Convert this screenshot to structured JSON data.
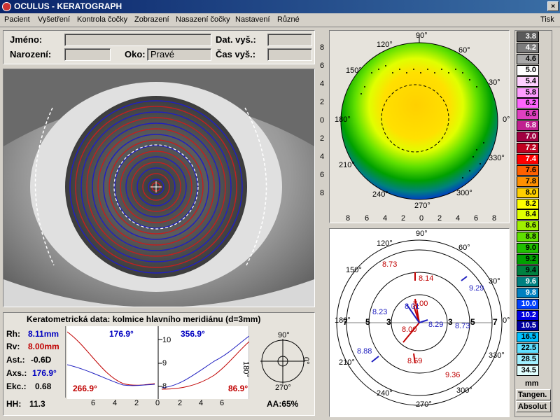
{
  "window": {
    "title": "OCULUS - KERATOGRAPH",
    "close": "×"
  },
  "menu": {
    "items": [
      "Pacient",
      "Vyšetření",
      "Kontrola čočky",
      "Zobrazení",
      "Nasazení čočky",
      "Nastavení",
      "Různé"
    ],
    "right": "Tisk"
  },
  "patient": {
    "name_label": "Jméno:",
    "name_value": "",
    "birth_label": "Narození:",
    "birth_value": "",
    "eye_label": "Oko:",
    "eye_value": "Pravé",
    "exam_date_label": "Dat. vyš.:",
    "exam_date_value": "",
    "exam_time_label": "Čas vyš.:",
    "exam_time_value": ""
  },
  "keratometry": {
    "title": "Keratometrická data: kolmice hlavního meridiánu (d=3mm)",
    "rh_label": "Rh:",
    "rh_value": "8.11mm",
    "rv_label": "Rv:",
    "rv_value": "8.00mm",
    "ast_label": "Ast.:",
    "ast_value": "-0.6D",
    "axs_label": "Axs.:",
    "axs_value": "176.9°",
    "ekc_label": "Ekc.:",
    "ekc_value": "0.68",
    "hh_label": "HH:",
    "hh_value": "11.3",
    "aa_label": "AA:65%",
    "left_top_angle": "176.9°",
    "left_bottom_angle": "266.9°",
    "right_top_angle": "356.9°",
    "right_bottom_angle": "86.9°",
    "x_ticks": [
      "6",
      "4",
      "2",
      "0",
      "2",
      "4",
      "6"
    ],
    "y_ticks": [
      "10",
      "9",
      "8"
    ],
    "compass": {
      "top": "90°",
      "bottom": "270°",
      "left": "180°",
      "right": "0°"
    }
  },
  "topo_map": {
    "angles": [
      "90°",
      "120°",
      "60°",
      "150°",
      "30°",
      "180°",
      "0°",
      "210°",
      "330°",
      "240°",
      "300°",
      "270°"
    ],
    "y_ticks": [
      "8",
      "6",
      "4",
      "2",
      "0",
      "2",
      "4",
      "6",
      "8"
    ],
    "x_ticks": [
      "8",
      "6",
      "4",
      "2",
      "0",
      "2",
      "4",
      "6",
      "8"
    ]
  },
  "radius_map": {
    "angles": [
      "90°",
      "120°",
      "60°",
      "150°",
      "30°",
      "180°",
      "0°",
      "210°",
      "330°",
      "240°",
      "300°",
      "270°"
    ],
    "rings": [
      "7",
      "5",
      "3",
      "3",
      "5",
      "7"
    ],
    "values": {
      "v873a": "8.73",
      "v814": "8.14",
      "v929": "9.29",
      "v823": "8.23",
      "v801": "8.01",
      "v800a": "8.00",
      "v829": "8.29",
      "v873b": "8.73",
      "v800b": "8.00",
      "v888": "8.88",
      "v859": "8.59",
      "v936": "9.36"
    }
  },
  "color_scale": {
    "values": [
      "3.8",
      "4.2",
      "4.6",
      "5.0",
      "5.4",
      "5.8",
      "6.2",
      "6.6",
      "6.8",
      "7.0",
      "7.2",
      "7.4",
      "7.6",
      "7.8",
      "8.0",
      "8.2",
      "8.4",
      "8.6",
      "8.8",
      "9.0",
      "9.2",
      "9.4",
      "9.6",
      "9.8",
      "10.0",
      "10.2",
      "10.5",
      "16.5",
      "22.5",
      "28.5",
      "34.5"
    ],
    "colors": [
      "#5a5a5a",
      "#7c7c7c",
      "#a8a8a8",
      "#ffffff",
      "#ffd0ff",
      "#ff9cff",
      "#ff64ff",
      "#e040c0",
      "#c02090",
      "#a00040",
      "#c00020",
      "#ff0000",
      "#ff6000",
      "#ff9000",
      "#ffd000",
      "#ffff00",
      "#e0ff00",
      "#a0f000",
      "#60e000",
      "#20c000",
      "#00a000",
      "#008040",
      "#008080",
      "#0080c0",
      "#0040ff",
      "#0000e0",
      "#0000a0",
      "#00c0ff",
      "#60e0ff",
      "#a0f0ff",
      "#e0ffff"
    ],
    "unit": "mm",
    "mode1": "Tangen.",
    "mode2": "Absolut"
  }
}
